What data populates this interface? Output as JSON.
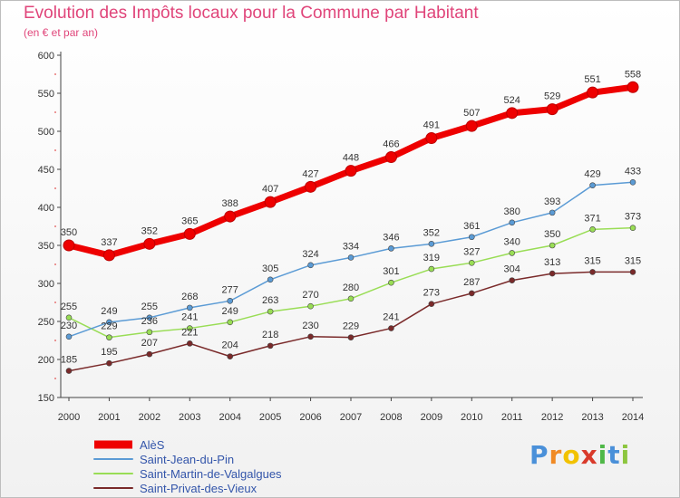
{
  "title": "Evolution des Impôts locaux pour la Commune par Habitant",
  "subtitle": "(en € et par an)",
  "brand": {
    "letters": [
      "P",
      "r",
      "o",
      "x",
      "i",
      "t",
      "i"
    ],
    "colors": [
      "#4a90d9",
      "#f08a24",
      "#f2c200",
      "#d93a2b",
      "#4fb848",
      "#4a90d9",
      "#8dc63f"
    ]
  },
  "chart_data": {
    "type": "line",
    "title": "Evolution des Impôts locaux pour la Commune par Habitant",
    "ylabel": "(en € et par an)",
    "categories": [
      "2000",
      "2001",
      "2002",
      "2003",
      "2004",
      "2005",
      "2006",
      "2007",
      "2008",
      "2009",
      "2010",
      "2011",
      "2012",
      "2013",
      "2014"
    ],
    "ylim": [
      150,
      600
    ],
    "yticks": [
      150,
      200,
      250,
      300,
      350,
      400,
      450,
      500,
      550,
      600
    ],
    "grid": false,
    "legend": "bottom-left",
    "series": [
      {
        "name": "AlèS",
        "color": "#ee0000",
        "values": [
          350,
          337,
          352,
          365,
          388,
          407,
          427,
          448,
          466,
          491,
          507,
          524,
          529,
          551,
          558
        ]
      },
      {
        "name": "Saint-Jean-du-Pin",
        "color": "#5b9bd5",
        "values": [
          230,
          249,
          255,
          268,
          277,
          305,
          324,
          334,
          346,
          352,
          361,
          380,
          393,
          429,
          433
        ]
      },
      {
        "name": "Saint-Martin-de-Valgalgues",
        "color": "#99dd55",
        "values": [
          255,
          229,
          236,
          241,
          249,
          263,
          270,
          280,
          301,
          319,
          327,
          340,
          350,
          371,
          373
        ]
      },
      {
        "name": "Saint-Privat-des-Vieux",
        "color": "#7a2a2a",
        "values": [
          185,
          195,
          207,
          221,
          204,
          218,
          230,
          229,
          241,
          273,
          287,
          304,
          313,
          315,
          315
        ]
      }
    ]
  }
}
